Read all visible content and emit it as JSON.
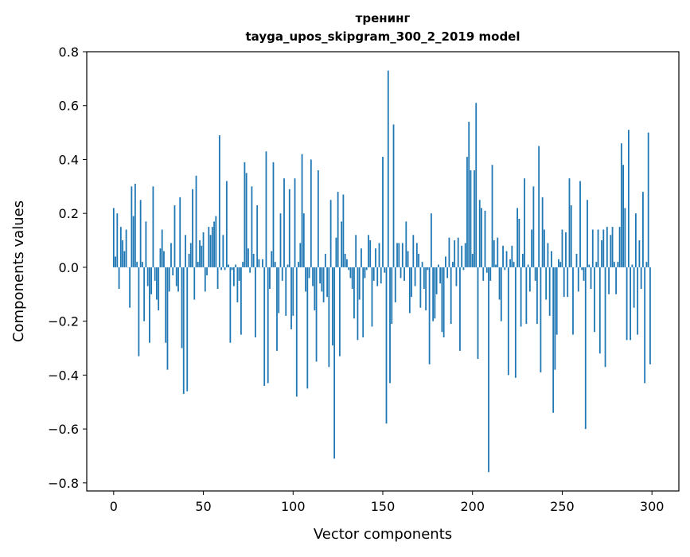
{
  "chart_data": {
    "type": "bar",
    "title_line1": "тренинг",
    "title_line2": "tayga_upos_skipgram_300_2_2019 model",
    "xlabel": "Vector components",
    "ylabel": "Components values",
    "xlim": [
      -15,
      315
    ],
    "ylim": [
      -0.83,
      0.8
    ],
    "xticks": [
      0,
      50,
      100,
      150,
      200,
      250,
      300
    ],
    "xtick_labels": [
      "0",
      "50",
      "100",
      "150",
      "200",
      "250",
      "300"
    ],
    "yticks": [
      -0.8,
      -0.6,
      -0.4,
      -0.2,
      0.0,
      0.2,
      0.4,
      0.6,
      0.8
    ],
    "ytick_labels": [
      "−0.8",
      "−0.6",
      "−0.4",
      "−0.2",
      "0.0",
      "0.2",
      "0.4",
      "0.6",
      "0.8"
    ],
    "bar_color": "#1f77b4",
    "grid": false,
    "values": [
      0.22,
      0.04,
      0.2,
      -0.08,
      0.15,
      0.1,
      0.06,
      0.14,
      0.0,
      -0.15,
      0.3,
      0.19,
      0.31,
      0.02,
      -0.33,
      0.25,
      0.02,
      -0.2,
      0.17,
      -0.07,
      -0.28,
      -0.1,
      0.3,
      -0.05,
      -0.12,
      -0.16,
      0.07,
      0.14,
      0.06,
      -0.28,
      -0.38,
      -0.09,
      0.09,
      -0.03,
      0.23,
      -0.07,
      -0.09,
      0.26,
      -0.3,
      -0.47,
      0.12,
      -0.46,
      0.05,
      0.09,
      0.29,
      -0.12,
      0.34,
      0.02,
      0.1,
      0.08,
      0.13,
      -0.09,
      -0.03,
      0.15,
      0.12,
      0.15,
      0.17,
      0.19,
      -0.08,
      0.49,
      -0.01,
      0.12,
      -0.01,
      0.32,
      0.01,
      -0.28,
      -0.01,
      -0.07,
      0.01,
      -0.13,
      -0.05,
      -0.25,
      0.02,
      0.39,
      0.35,
      0.07,
      -0.02,
      0.3,
      0.05,
      -0.26,
      0.23,
      0.03,
      0.0,
      0.03,
      -0.44,
      0.43,
      -0.43,
      -0.08,
      0.06,
      0.39,
      0.02,
      -0.31,
      -0.17,
      0.2,
      -0.05,
      0.33,
      -0.18,
      0.01,
      0.29,
      -0.23,
      -0.18,
      0.33,
      -0.48,
      0.02,
      0.09,
      0.42,
      0.2,
      -0.09,
      -0.45,
      -0.04,
      0.4,
      -0.07,
      -0.16,
      -0.35,
      0.36,
      -0.06,
      -0.09,
      -0.13,
      0.05,
      -0.11,
      -0.37,
      0.25,
      -0.29,
      -0.71,
      0.11,
      0.28,
      -0.33,
      0.17,
      0.27,
      0.05,
      0.03,
      -0.01,
      -0.04,
      -0.08,
      -0.19,
      0.12,
      -0.27,
      -0.12,
      0.07,
      -0.26,
      -0.04,
      -0.01,
      0.12,
      0.1,
      -0.22,
      -0.05,
      0.07,
      -0.07,
      0.09,
      -0.06,
      0.41,
      -0.02,
      -0.58,
      0.73,
      -0.43,
      -0.21,
      0.53,
      -0.13,
      0.09,
      0.09,
      -0.04,
      0.09,
      -0.05,
      0.17,
      0.06,
      -0.17,
      -0.11,
      0.12,
      -0.07,
      0.09,
      0.05,
      -0.15,
      0.02,
      -0.08,
      -0.16,
      -0.01,
      -0.36,
      0.2,
      -0.2,
      -0.19,
      -0.1,
      0.01,
      -0.06,
      -0.24,
      -0.26,
      0.04,
      -0.04,
      0.11,
      -0.21,
      0.02,
      0.1,
      -0.07,
      0.11,
      -0.31,
      0.08,
      -0.01,
      0.09,
      0.41,
      0.54,
      0.36,
      0.05,
      0.36,
      0.61,
      -0.34,
      0.25,
      0.22,
      -0.05,
      0.21,
      -0.02,
      -0.76,
      -0.05,
      0.38,
      0.1,
      0.01,
      0.11,
      -0.12,
      -0.2,
      0.08,
      -0.01,
      0.06,
      -0.4,
      0.03,
      0.08,
      0.02,
      -0.41,
      0.22,
      0.18,
      -0.22,
      0.05,
      0.33,
      -0.21,
      0.01,
      -0.09,
      0.14,
      0.3,
      -0.05,
      -0.21,
      0.45,
      -0.39,
      0.26,
      0.14,
      -0.12,
      0.09,
      -0.18,
      0.06,
      -0.54,
      -0.38,
      -0.25,
      0.03,
      0.02,
      0.14,
      -0.11,
      0.13,
      -0.11,
      0.33,
      0.23,
      -0.25,
      0.0,
      0.05,
      -0.09,
      0.32,
      -0.01,
      -0.05,
      -0.6,
      0.25,
      0.01,
      -0.08,
      0.14,
      -0.24,
      0.02,
      0.14,
      -0.32,
      0.1,
      0.14,
      -0.37,
      0.15,
      -0.1,
      0.12,
      0.15,
      0.02,
      -0.1,
      0.02,
      0.15,
      0.46,
      0.38,
      0.22,
      -0.27,
      0.51,
      -0.27,
      0.01,
      -0.15,
      0.2,
      -0.25,
      0.1,
      -0.08,
      0.28,
      -0.43,
      0.02,
      0.5,
      -0.36
    ]
  }
}
